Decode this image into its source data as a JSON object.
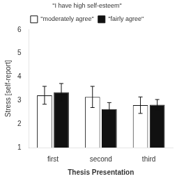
{
  "chart_data": {
    "type": "bar",
    "categories": [
      "first",
      "second",
      "third"
    ],
    "series": [
      {
        "name": "\"moderately agree\"",
        "color": "#ffffff",
        "values": [
          3.22,
          3.15,
          2.8
        ],
        "errors": [
          0.38,
          0.45,
          0.35
        ]
      },
      {
        "name": "\"fairly agree\"",
        "color": "#111111",
        "values": [
          3.35,
          2.63,
          2.82
        ],
        "errors": [
          0.37,
          0.28,
          0.22
        ]
      }
    ],
    "legend_title": "\"I have high self-esteem\"",
    "xlabel": "Thesis Presentation",
    "ylabel": "Stress [self-report]",
    "ylim": [
      1.0,
      6.0
    ],
    "yticks": [
      1,
      2,
      3,
      4,
      5,
      6
    ],
    "grid": false,
    "legend": "top"
  }
}
